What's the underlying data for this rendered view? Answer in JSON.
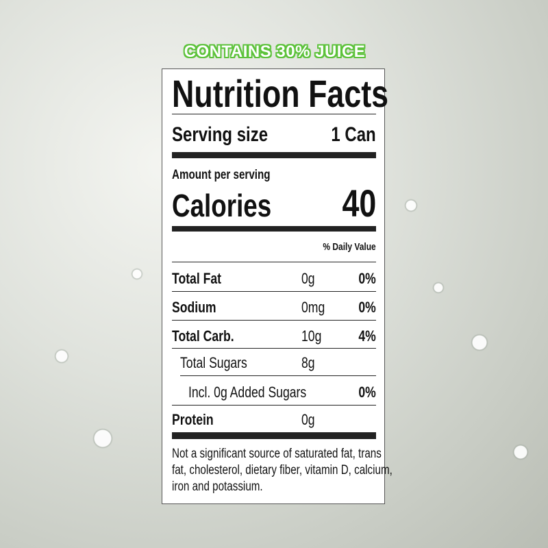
{
  "banner": "CONTAINS 30% JUICE",
  "label": {
    "title": "Nutrition Facts",
    "serving_label": "Serving size",
    "serving_value": "1 Can",
    "amount_per_serving": "Amount per serving",
    "calories_label": "Calories",
    "calories_value": "40",
    "dv_header": "% Daily Value",
    "rows": [
      {
        "name": "Total Fat",
        "amount": "0g",
        "dv": "0%"
      },
      {
        "name": "Sodium",
        "amount": "0mg",
        "dv": "0%"
      },
      {
        "name": "Total Carb.",
        "amount": "10g",
        "dv": "4%"
      },
      {
        "name": "Total Sugars",
        "amount": "8g",
        "dv": ""
      },
      {
        "name": "Incl. 0g Added Sugars",
        "amount": "",
        "dv": "0%"
      },
      {
        "name": "Protein",
        "amount": "0g",
        "dv": ""
      }
    ],
    "footnote_lines": [
      "Not a significant source of saturated fat, trans",
      "fat, cholesterol, dietary fiber, vitamin D, calcium,",
      "iron and potassium."
    ]
  },
  "colors": {
    "banner_outline": "#5cc23a"
  }
}
